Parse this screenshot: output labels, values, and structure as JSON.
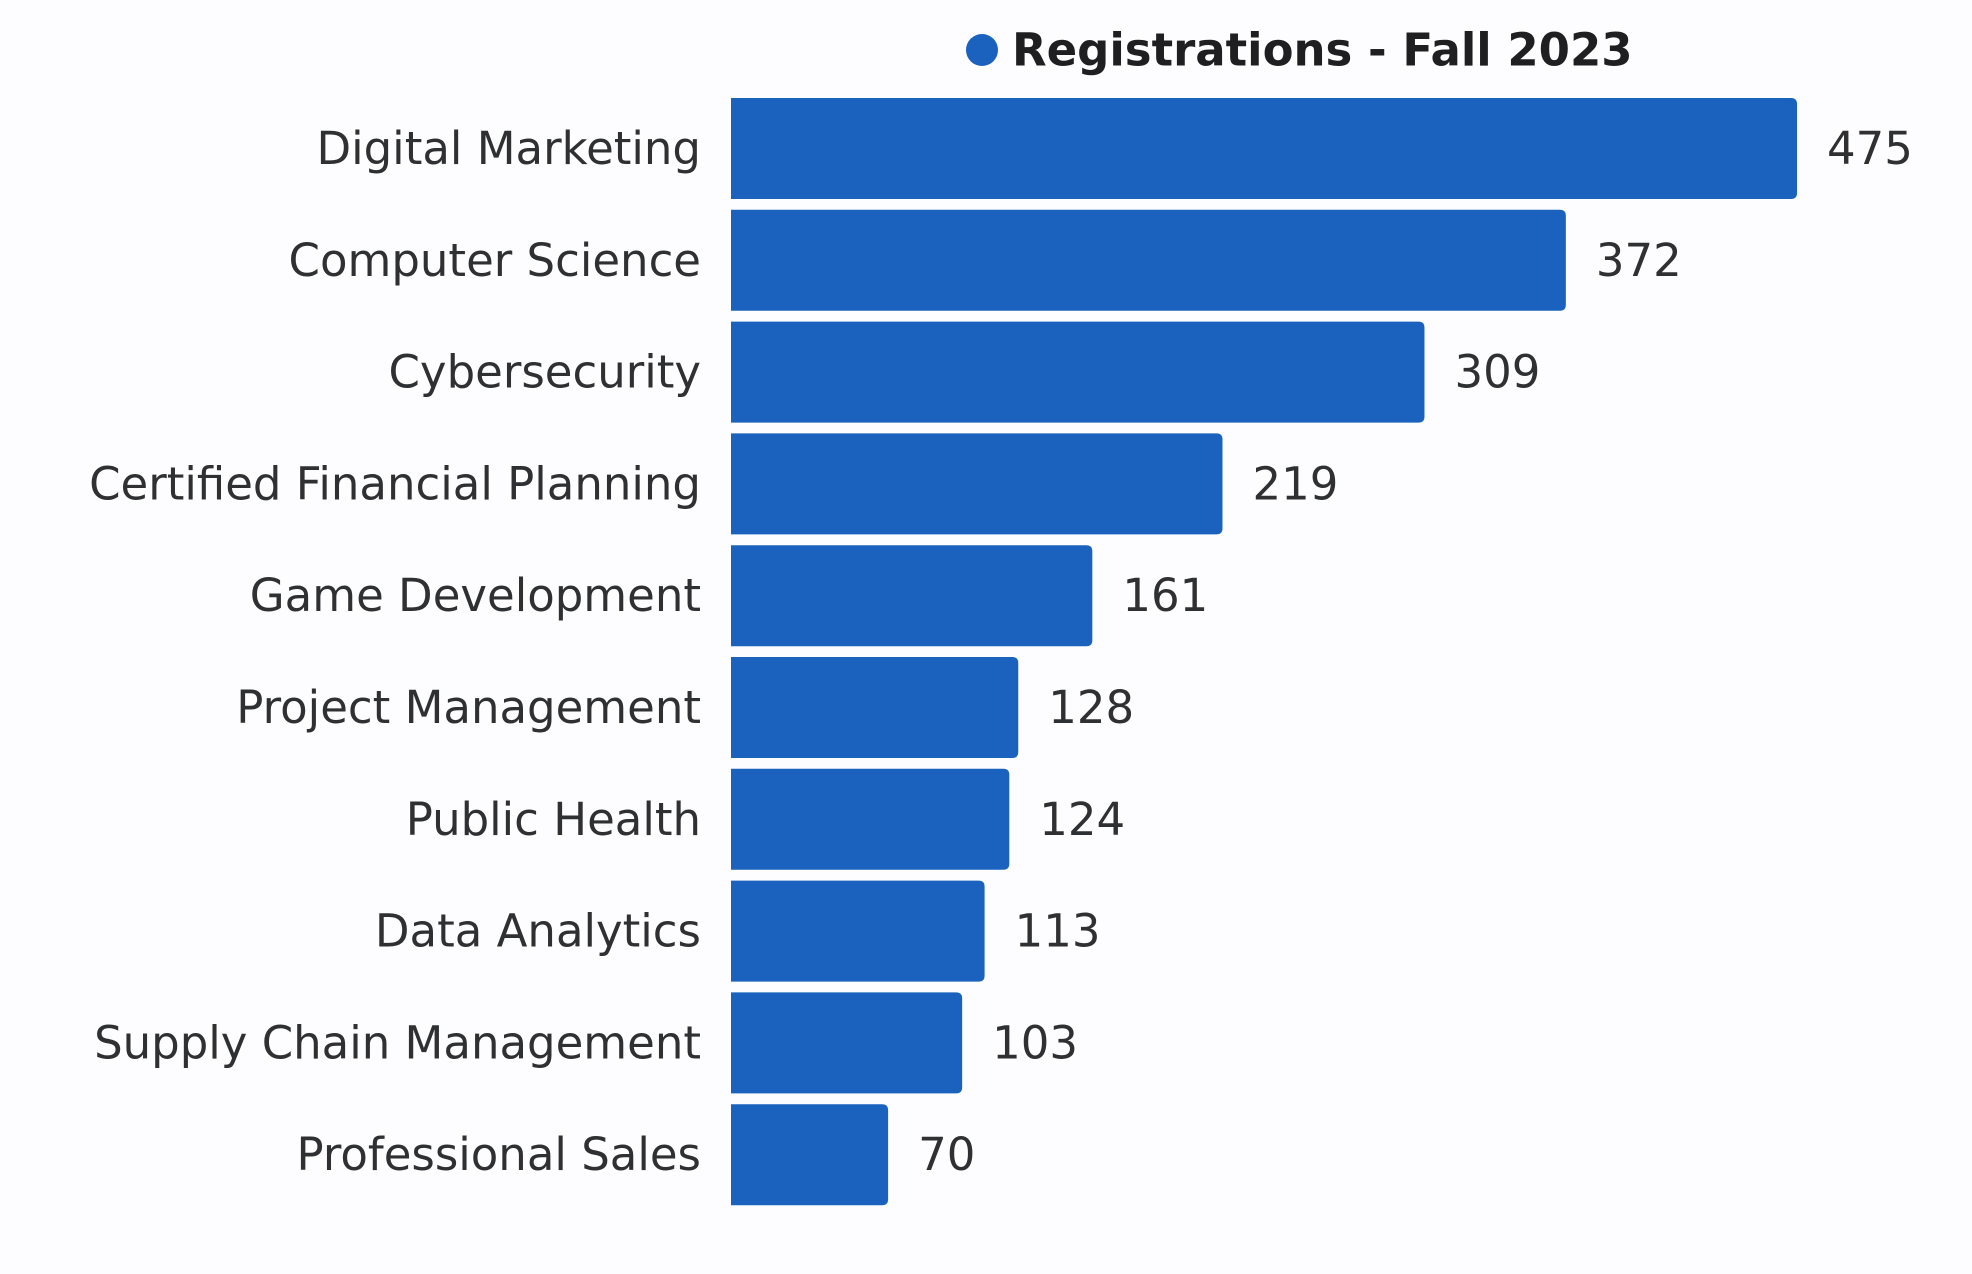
{
  "chart_data": {
    "type": "bar",
    "orientation": "horizontal",
    "categories": [
      "Digital Marketing",
      "Computer Science",
      "Cybersecurity",
      "Certified Financial Planning",
      "Game Development",
      "Project Management",
      "Public Health",
      "Data Analytics",
      "Supply Chain Management",
      "Professional Sales"
    ],
    "series": [
      {
        "name": "Registrations - Fall 2023",
        "color": "#1a62bd",
        "values": [
          475,
          372,
          309,
          219,
          161,
          128,
          124,
          113,
          103,
          70
        ]
      }
    ],
    "xlim": [
      0,
      475
    ],
    "data_labels": true,
    "grid": false,
    "legend": "top"
  }
}
